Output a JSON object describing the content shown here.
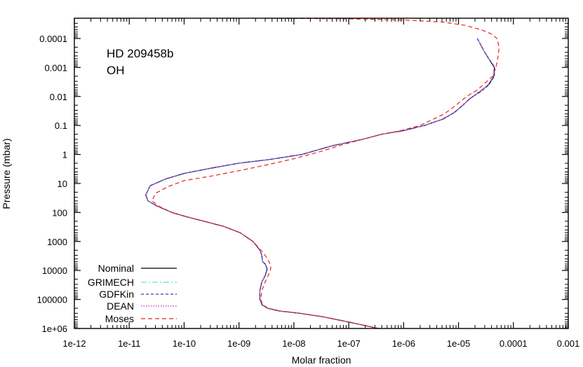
{
  "chart_data": {
    "type": "line",
    "title": "",
    "annotations": [
      "HD 209458b",
      "OH"
    ],
    "xlabel": "Molar fraction",
    "ylabel": "Pressure (mbar)",
    "x_scale": "log",
    "y_scale": "log",
    "y_inverted": true,
    "xlim": [
      1e-12,
      0.001
    ],
    "ylim": [
      2e-05,
      1000000
    ],
    "x_tick_labels": [
      "1e-12",
      "1e-11",
      "1e-10",
      "1e-09",
      "1e-08",
      "1e-07",
      "1e-06",
      "1e-05",
      "0.0001",
      "0.001"
    ],
    "x_ticks": [
      1e-12,
      1e-11,
      1e-10,
      1e-09,
      1e-08,
      1e-07,
      1e-06,
      1e-05,
      0.0001,
      0.001
    ],
    "y_tick_labels": [
      "0.0001",
      "0.001",
      "0.01",
      "0.1",
      "1",
      "10",
      "100",
      "1000",
      "10000",
      "100000",
      "1e+06"
    ],
    "y_ticks": [
      0.0001,
      0.001,
      0.01,
      0.1,
      1,
      10,
      100,
      1000,
      10000,
      100000,
      1000000
    ],
    "grid": false,
    "legend_position": "bottom-left",
    "series": [
      {
        "name": "Nominal",
        "color": "#000000",
        "dash": "",
        "points": [
          [
            2.2e-05,
            0.0001
          ],
          [
            3e-05,
            0.0003
          ],
          [
            4.5e-05,
            0.001
          ],
          [
            4.4e-05,
            0.002
          ],
          [
            3.5e-05,
            0.004
          ],
          [
            2.4e-05,
            0.007
          ],
          [
            1.6e-05,
            0.012
          ],
          [
            1.2e-05,
            0.02
          ],
          [
            8.5e-06,
            0.035
          ],
          [
            5.2e-06,
            0.06
          ],
          [
            2.4e-06,
            0.1
          ],
          [
            1e-06,
            0.15
          ],
          [
            4e-07,
            0.2
          ],
          [
            1.8e-07,
            0.3
          ],
          [
            5e-08,
            0.5
          ],
          [
            1.4e-08,
            1
          ],
          [
            3.5e-09,
            1.5
          ],
          [
            1e-09,
            2
          ],
          [
            3e-10,
            3
          ],
          [
            1e-10,
            4.5
          ],
          [
            4.6e-11,
            7
          ],
          [
            2.4e-11,
            12
          ],
          [
            2e-11,
            25
          ],
          [
            2.2e-11,
            40
          ],
          [
            3.2e-11,
            60
          ],
          [
            6e-11,
            100
          ],
          [
            1.1e-10,
            140
          ],
          [
            2.3e-10,
            200
          ],
          [
            5.2e-10,
            300
          ],
          [
            1.05e-09,
            500
          ],
          [
            1.8e-09,
            1000
          ],
          [
            2.4e-09,
            2000
          ],
          [
            2.6e-09,
            3000
          ],
          [
            2.7e-09,
            5000
          ],
          [
            3e-09,
            6000
          ],
          [
            3.2e-09,
            8000
          ],
          [
            3.2e-09,
            10000
          ],
          [
            3e-09,
            15000
          ],
          [
            2.6e-09,
            25000
          ],
          [
            2.4e-09,
            50000
          ],
          [
            2.4e-09,
            100000
          ],
          [
            2.6e-09,
            150000
          ],
          [
            3.3e-09,
            200000
          ],
          [
            5.5e-09,
            250000
          ],
          [
            1.3e-08,
            300000
          ],
          [
            3.5e-08,
            400000
          ],
          [
            1e-07,
            600000
          ],
          [
            3.5e-07,
            1000000
          ]
        ]
      },
      {
        "name": "GRIMECH",
        "color": "#5fe0d5",
        "dash": "8,3,2,3",
        "points": [
          [
            2.2e-05,
            0.0001
          ],
          [
            3e-05,
            0.0003
          ],
          [
            4.6e-05,
            0.001
          ],
          [
            4.5e-05,
            0.002
          ],
          [
            3.6e-05,
            0.004
          ],
          [
            2.4e-05,
            0.007
          ],
          [
            1.6e-05,
            0.012
          ],
          [
            1.2e-05,
            0.02
          ],
          [
            8.6e-06,
            0.035
          ],
          [
            5.2e-06,
            0.06
          ],
          [
            2.4e-06,
            0.1
          ],
          [
            1e-06,
            0.15
          ],
          [
            4e-07,
            0.2
          ],
          [
            1.8e-07,
            0.3
          ],
          [
            5e-08,
            0.5
          ],
          [
            1.4e-08,
            1
          ],
          [
            3.5e-09,
            1.5
          ],
          [
            1e-09,
            2
          ],
          [
            3e-10,
            3
          ],
          [
            1e-10,
            4.5
          ],
          [
            4.7e-11,
            7
          ],
          [
            2.4e-11,
            12
          ],
          [
            2e-11,
            25
          ],
          [
            2.2e-11,
            40
          ],
          [
            3.2e-11,
            60
          ],
          [
            6e-11,
            100
          ],
          [
            1.1e-10,
            140
          ],
          [
            2.3e-10,
            200
          ],
          [
            5.2e-10,
            300
          ],
          [
            1.05e-09,
            500
          ],
          [
            1.8e-09,
            1000
          ],
          [
            2.4e-09,
            2000
          ],
          [
            2.6e-09,
            3000
          ],
          [
            2.7e-09,
            5000
          ],
          [
            3e-09,
            6000
          ],
          [
            3.3e-09,
            8000
          ],
          [
            3.3e-09,
            10000
          ],
          [
            3e-09,
            15000
          ],
          [
            2.6e-09,
            25000
          ],
          [
            2.4e-09,
            50000
          ],
          [
            2.4e-09,
            100000
          ],
          [
            2.6e-09,
            150000
          ],
          [
            3.3e-09,
            200000
          ],
          [
            5.5e-09,
            250000
          ],
          [
            1.3e-08,
            300000
          ],
          [
            3.5e-08,
            400000
          ],
          [
            1e-07,
            600000
          ],
          [
            3.5e-07,
            1000000
          ]
        ]
      },
      {
        "name": "GDFKin",
        "color": "#2f3fb8",
        "dash": "4,3",
        "points": [
          [
            2.2e-05,
            0.0001
          ],
          [
            3e-05,
            0.0003
          ],
          [
            4.6e-05,
            0.001
          ],
          [
            4.5e-05,
            0.002
          ],
          [
            3.6e-05,
            0.004
          ],
          [
            2.5e-05,
            0.007
          ],
          [
            1.6e-05,
            0.012
          ],
          [
            1.2e-05,
            0.02
          ],
          [
            8.6e-06,
            0.035
          ],
          [
            5.3e-06,
            0.06
          ],
          [
            2.4e-06,
            0.1
          ],
          [
            1e-06,
            0.15
          ],
          [
            4e-07,
            0.2
          ],
          [
            1.8e-07,
            0.3
          ],
          [
            5e-08,
            0.5
          ],
          [
            1.4e-08,
            1
          ],
          [
            3.5e-09,
            1.5
          ],
          [
            1e-09,
            2
          ],
          [
            3e-10,
            3
          ],
          [
            1e-10,
            4.5
          ],
          [
            4.6e-11,
            7
          ],
          [
            2.4e-11,
            12
          ],
          [
            2e-11,
            25
          ],
          [
            2.2e-11,
            40
          ],
          [
            3.2e-11,
            60
          ],
          [
            6e-11,
            100
          ],
          [
            1.1e-10,
            140
          ],
          [
            2.3e-10,
            200
          ],
          [
            5.2e-10,
            300
          ],
          [
            1.05e-09,
            500
          ],
          [
            1.8e-09,
            1000
          ],
          [
            2.4e-09,
            2000
          ],
          [
            2.6e-09,
            3000
          ],
          [
            2.7e-09,
            5000
          ],
          [
            3e-09,
            6000
          ],
          [
            3.2e-09,
            8000
          ],
          [
            3.2e-09,
            10000
          ],
          [
            3e-09,
            15000
          ],
          [
            2.6e-09,
            25000
          ],
          [
            2.4e-09,
            50000
          ],
          [
            2.4e-09,
            100000
          ],
          [
            2.6e-09,
            150000
          ],
          [
            3.3e-09,
            200000
          ],
          [
            5.5e-09,
            250000
          ],
          [
            1.3e-08,
            300000
          ],
          [
            3.5e-08,
            400000
          ],
          [
            1e-07,
            600000
          ],
          [
            3.5e-07,
            1000000
          ]
        ]
      },
      {
        "name": "DEAN",
        "color": "#c020c0",
        "dash": "1.5,2",
        "points": [
          [
            2.2e-05,
            0.0001
          ],
          [
            3e-05,
            0.0003
          ],
          [
            4.5e-05,
            0.001
          ],
          [
            4.4e-05,
            0.002
          ],
          [
            3.5e-05,
            0.004
          ],
          [
            2.4e-05,
            0.007
          ],
          [
            1.6e-05,
            0.012
          ],
          [
            1.2e-05,
            0.02
          ],
          [
            8.5e-06,
            0.035
          ],
          [
            5.2e-06,
            0.06
          ],
          [
            2.4e-06,
            0.1
          ],
          [
            1e-06,
            0.15
          ],
          [
            4e-07,
            0.2
          ],
          [
            1.8e-07,
            0.3
          ],
          [
            5e-08,
            0.5
          ],
          [
            1.4e-08,
            1
          ],
          [
            3.5e-09,
            1.5
          ],
          [
            1e-09,
            2
          ],
          [
            3e-10,
            3
          ],
          [
            1e-10,
            4.5
          ],
          [
            4.6e-11,
            7
          ],
          [
            2.4e-11,
            12
          ],
          [
            2e-11,
            25
          ],
          [
            2.2e-11,
            40
          ],
          [
            3.2e-11,
            60
          ],
          [
            6e-11,
            100
          ],
          [
            1.1e-10,
            140
          ],
          [
            2.3e-10,
            200
          ],
          [
            5.2e-10,
            300
          ],
          [
            1.05e-09,
            500
          ],
          [
            1.8e-09,
            1000
          ],
          [
            2.4e-09,
            2000
          ],
          [
            2.6e-09,
            3000
          ],
          [
            2.7e-09,
            5000
          ],
          [
            3e-09,
            6000
          ],
          [
            3.2e-09,
            8000
          ],
          [
            3.2e-09,
            10000
          ],
          [
            3e-09,
            15000
          ],
          [
            2.6e-09,
            25000
          ],
          [
            2.4e-09,
            50000
          ],
          [
            2.4e-09,
            100000
          ],
          [
            2.6e-09,
            150000
          ],
          [
            3.3e-09,
            200000
          ],
          [
            5.5e-09,
            250000
          ],
          [
            1.3e-08,
            300000
          ],
          [
            3.5e-08,
            400000
          ],
          [
            1e-07,
            600000
          ],
          [
            3.5e-07,
            1000000
          ]
        ]
      },
      {
        "name": "Moses",
        "color": "#e8231f",
        "dash": "6,4",
        "points": [
          [
            3e-09,
            2e-05
          ],
          [
            1e-07,
            2.1e-05
          ],
          [
            1e-06,
            2.3e-05
          ],
          [
            5e-06,
            2.7e-05
          ],
          [
            1.3e-05,
            3.5e-05
          ],
          [
            2.6e-05,
            5e-05
          ],
          [
            4e-05,
            7e-05
          ],
          [
            5e-05,
            0.0001
          ],
          [
            5.5e-05,
            0.0002
          ],
          [
            5.3e-05,
            0.0004
          ],
          [
            4.8e-05,
            0.001
          ],
          [
            4.2e-05,
            0.002
          ],
          [
            3.3e-05,
            0.003
          ],
          [
            2.2e-05,
            0.006
          ],
          [
            1.4e-05,
            0.01
          ],
          [
            9e-06,
            0.02
          ],
          [
            5.5e-06,
            0.04
          ],
          [
            3.5e-06,
            0.06
          ],
          [
            2e-06,
            0.1
          ],
          [
            9e-07,
            0.15
          ],
          [
            4e-07,
            0.2
          ],
          [
            1.8e-07,
            0.3
          ],
          [
            8e-08,
            0.45
          ],
          [
            3e-08,
            0.8
          ],
          [
            1e-08,
            1.4
          ],
          [
            3.5e-09,
            2.2
          ],
          [
            1.1e-09,
            3.5
          ],
          [
            3.2e-10,
            5.5
          ],
          [
            1e-10,
            8
          ],
          [
            5e-11,
            13
          ],
          [
            3e-11,
            22
          ],
          [
            2.6e-11,
            40
          ],
          [
            3.4e-11,
            60
          ],
          [
            6e-11,
            100
          ],
          [
            1.1e-10,
            140
          ],
          [
            2.3e-10,
            200
          ],
          [
            5.2e-10,
            300
          ],
          [
            1.05e-09,
            500
          ],
          [
            1.8e-09,
            1000
          ],
          [
            2.5e-09,
            2000
          ],
          [
            3e-09,
            3000
          ],
          [
            3.4e-09,
            4500
          ],
          [
            3.7e-09,
            6000
          ],
          [
            3.8e-09,
            8000
          ],
          [
            3.7e-09,
            10000
          ],
          [
            3.4e-09,
            15000
          ],
          [
            3e-09,
            25000
          ],
          [
            2.6e-09,
            50000
          ],
          [
            2.5e-09,
            100000
          ],
          [
            2.7e-09,
            150000
          ],
          [
            3.4e-09,
            200000
          ],
          [
            5.5e-09,
            250000
          ],
          [
            1.3e-08,
            300000
          ],
          [
            3.5e-08,
            400000
          ],
          [
            1e-07,
            600000
          ],
          [
            3.5e-07,
            1000000
          ]
        ]
      }
    ]
  }
}
